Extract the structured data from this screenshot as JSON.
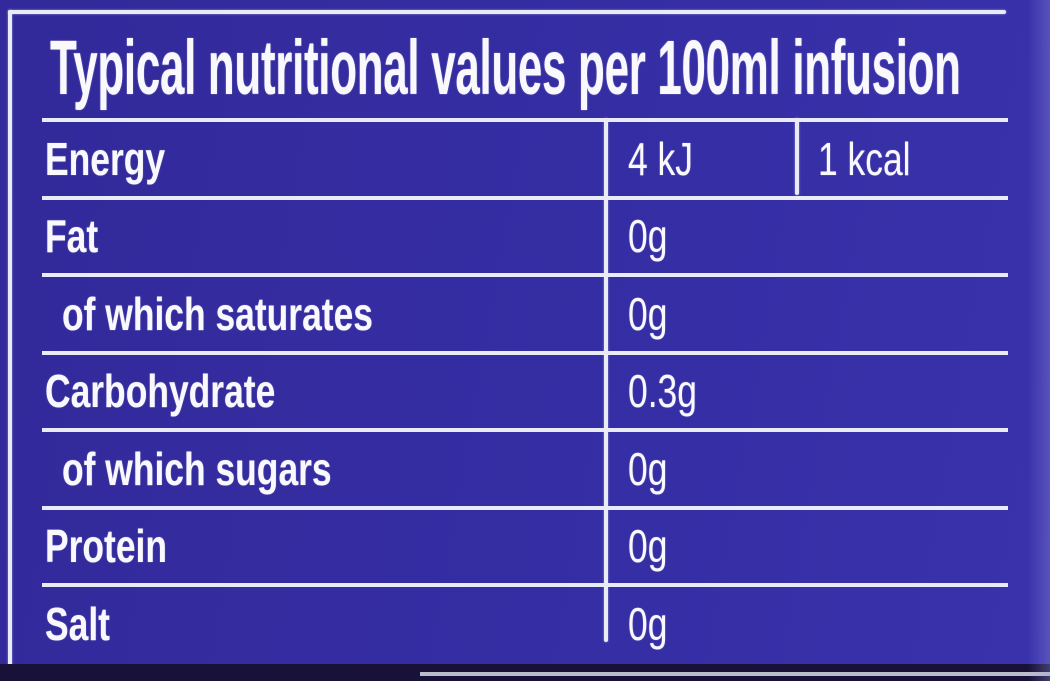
{
  "panel": {
    "title": "Typical nutritional values per 100ml infusion",
    "colors": {
      "background": "#342c9f",
      "text": "#f8f8fd",
      "rule_line": "#e9ebf6",
      "bottom_band": "#181238",
      "bottom_edge_line": "#ccd0dd"
    }
  },
  "table": {
    "rows": [
      {
        "label": "Energy",
        "indent": false,
        "values": [
          "4 kJ",
          "1 kcal"
        ]
      },
      {
        "label": "Fat",
        "indent": false,
        "values": [
          "0g"
        ]
      },
      {
        "label": "of which saturates",
        "indent": true,
        "values": [
          "0g"
        ]
      },
      {
        "label": "Carbohydrate",
        "indent": false,
        "values": [
          "0.3g"
        ]
      },
      {
        "label": "of which sugars",
        "indent": true,
        "values": [
          "0g"
        ]
      },
      {
        "label": "Protein",
        "indent": false,
        "values": [
          "0g"
        ]
      },
      {
        "label": "Salt",
        "indent": false,
        "values": [
          "0g"
        ]
      }
    ]
  }
}
